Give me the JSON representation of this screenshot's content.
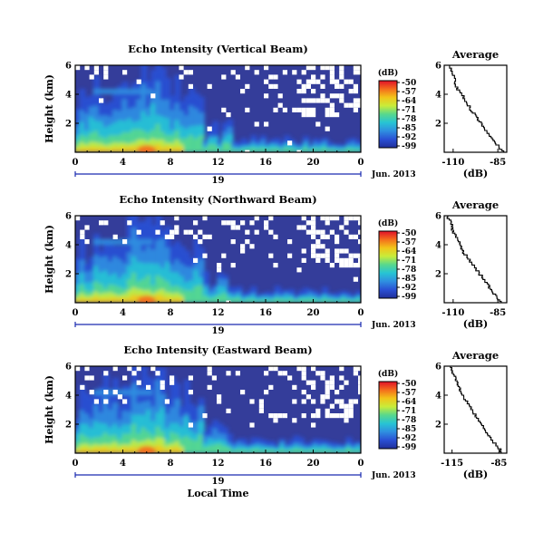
{
  "chart_data": [
    {
      "type": "heatmap",
      "title": "Echo Intensity (Vertical Beam)",
      "ylabel": "Height (km)",
      "yticks": [
        "6",
        "4",
        "2"
      ],
      "ylim": [
        0,
        6
      ],
      "xticks": [
        "0",
        "4",
        "8",
        "12",
        "16",
        "20",
        "0"
      ],
      "xlim": [
        0,
        24
      ],
      "day_label": "19",
      "date_label": "Jun. 2013",
      "colorbar": {
        "unit": "(dB)",
        "ticks": [
          "-50",
          "-57",
          "-64",
          "-71",
          "-78",
          "-85",
          "-92",
          "-99"
        ]
      },
      "average": {
        "title": "Average",
        "xlabel": "(dB)",
        "xticks": [
          "-110",
          "-85"
        ],
        "xlim": [
          -115,
          -80
        ],
        "yticks": [
          "6",
          "4",
          "2"
        ],
        "ylim": [
          0,
          6
        ],
        "profile_db": [
          -81,
          -85,
          -88,
          -91,
          -94,
          -97,
          -100,
          -103,
          -105,
          -108,
          -109,
          -110,
          -112
        ]
      }
    },
    {
      "type": "heatmap",
      "title": "Echo Intensity (Northward Beam)",
      "ylabel": "Height (km)",
      "yticks": [
        "6",
        "4",
        "2"
      ],
      "ylim": [
        0,
        6
      ],
      "xticks": [
        "0",
        "4",
        "8",
        "12",
        "16",
        "20",
        "0"
      ],
      "xlim": [
        0,
        24
      ],
      "day_label": "19",
      "date_label": "Jun. 2013",
      "colorbar": {
        "unit": "(dB)",
        "ticks": [
          "-50",
          "-57",
          "-64",
          "-71",
          "-78",
          "-85",
          "-92",
          "-99"
        ]
      },
      "average": {
        "title": "Average",
        "xlabel": "(dB)",
        "xticks": [
          "-110",
          "-85"
        ],
        "xlim": [
          -115,
          -80
        ],
        "yticks": [
          "6",
          "4",
          "2"
        ],
        "ylim": [
          0,
          6
        ],
        "profile_db": [
          -82,
          -86,
          -89,
          -92,
          -95,
          -98,
          -101,
          -104,
          -106,
          -108,
          -110,
          -111,
          -113
        ]
      }
    },
    {
      "type": "heatmap",
      "title": "Echo Intensity (Eastward Beam)",
      "ylabel": "Height (km)",
      "yticks": [
        "6",
        "4",
        "2"
      ],
      "ylim": [
        0,
        6
      ],
      "xticks": [
        "0",
        "4",
        "8",
        "12",
        "16",
        "20",
        "0"
      ],
      "xlim": [
        0,
        24
      ],
      "xlabel": "Local Time",
      "day_label": "19",
      "date_label": "Jun. 2013",
      "colorbar": {
        "unit": "(dB)",
        "ticks": [
          "-50",
          "-57",
          "-64",
          "-71",
          "-78",
          "-85",
          "-92",
          "-99"
        ]
      },
      "average": {
        "title": "Average",
        "xlabel": "(dB)",
        "xticks": [
          "-115",
          "-85"
        ],
        "xlim": [
          -120,
          -80
        ],
        "yticks": [
          "6",
          "4",
          "2"
        ],
        "ylim": [
          0,
          6
        ],
        "profile_db": [
          -82,
          -86,
          -90,
          -93,
          -96,
          -99,
          -102,
          -105,
          -108,
          -110,
          -112,
          -114,
          -116
        ]
      }
    }
  ],
  "colors": {
    "colorbar_stops": [
      "#e0102a",
      "#f46d1c",
      "#f2c51a",
      "#c8ec3a",
      "#58d88c",
      "#27c4d4",
      "#2f8fe0",
      "#2a4fd4",
      "#202f9a"
    ],
    "background_field": "#343d9a",
    "no_data": "#ffffff"
  }
}
